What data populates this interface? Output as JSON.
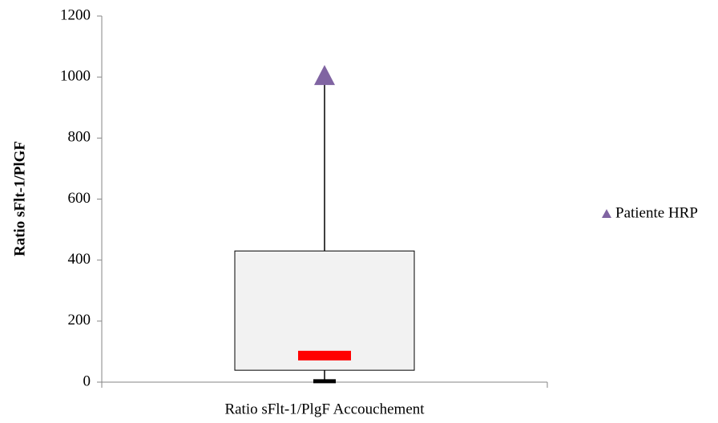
{
  "chart_data": {
    "type": "box",
    "ylabel": "Ratio sFlt-1/PlGF",
    "categories": [
      "Ratio sFlt-1/PlgF Accouchement"
    ],
    "box": {
      "min": 3,
      "q1": 39,
      "median": 87,
      "q3": 430,
      "max": 1000,
      "fill": "#f2f2f2",
      "median_color": "#ff0000"
    },
    "series": [
      {
        "name": "Patiente HRP",
        "color": "#8064a2",
        "marker": "triangle",
        "values": [
          1000
        ]
      }
    ],
    "ylim": [
      0,
      1200
    ],
    "yticks": [
      0,
      200,
      400,
      600,
      800,
      1000,
      1200
    ]
  }
}
